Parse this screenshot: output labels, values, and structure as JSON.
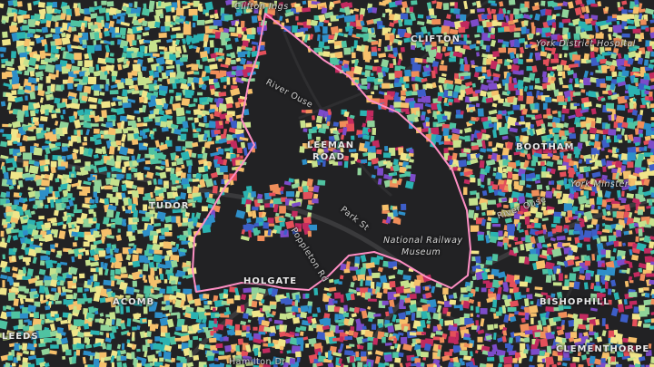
{
  "map": {
    "theme": {
      "background": "#222224",
      "road": "#3a3a3c",
      "road_minor": "#2e2e30",
      "boundary": "#ff8fc4",
      "palette": [
        "#3d5ec8",
        "#2e8fc9",
        "#2bb3b1",
        "#4fc3a1",
        "#8fd39a",
        "#c7e28d",
        "#f0e58a",
        "#f6c06b",
        "#ef8e5a",
        "#e4505a",
        "#c22a5f",
        "#7d4cc9"
      ]
    },
    "labels": {
      "clifton_ings": "Clifton Ings",
      "clifton": "CLIFTON",
      "york_district_hospital": "York District Hospital",
      "river_ouse_north": "River Ouse",
      "leeman_road_line1": "LEEMAN",
      "leeman_road_line2": "ROAD",
      "bootham": "BOOTHAM",
      "york_minster": "York Minster",
      "river_ouse_east": "River Ouse",
      "park_st": "Park St",
      "railway_museum_line1": "National Railway",
      "railway_museum_line2": "Museum",
      "holgate": "HOLGATE",
      "acomb": "ACOMB",
      "bishophill": "BISHOPHILL",
      "clementhorpe": "CLEMENTHORPE",
      "poppleton_rd": "Poppleton Rd",
      "hamilton_dr": "Hamilton Dr",
      "tudor": "TUDOR",
      "leeds": "LEEDS"
    }
  }
}
